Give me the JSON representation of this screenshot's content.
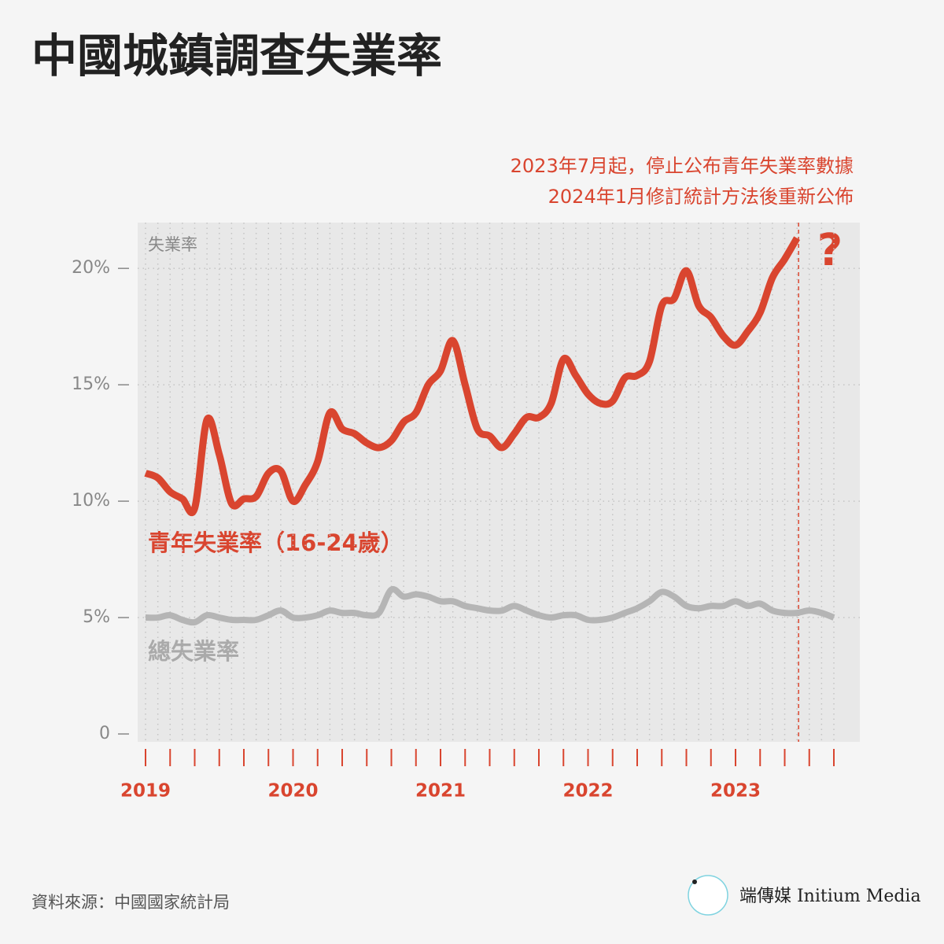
{
  "chart_data": {
    "type": "line",
    "title": "中國城鎮調查失業率",
    "annotations": [
      "2023年7月起，停止公布青年失業率數據",
      "2024年1月修訂統計方法後重新公佈",
      "?"
    ],
    "ylabel": "失業率",
    "source": "資料來源：中國國家統計局",
    "brand": "端傳媒 Initium Media",
    "categories": [
      "2019",
      null,
      null,
      null,
      null,
      null,
      null,
      null,
      null,
      null,
      null,
      null,
      "2020",
      null,
      null,
      null,
      null,
      null,
      null,
      null,
      null,
      null,
      null,
      null,
      "2021",
      null,
      null,
      null,
      null,
      null,
      null,
      null,
      null,
      null,
      null,
      null,
      "2022",
      null,
      null,
      null,
      null,
      null,
      null,
      null,
      null,
      null,
      null,
      null,
      "2023",
      null,
      null,
      null,
      null,
      null,
      null,
      null,
      null
    ],
    "series": [
      {
        "name": "青年失業率（16-24歲）",
        "color": "#d9452f",
        "values": [
          11.2,
          11.0,
          10.4,
          10.1,
          9.7,
          13.5,
          12.0,
          9.9,
          10.1,
          10.2,
          11.2,
          11.3,
          10.0,
          10.7,
          11.7,
          13.8,
          13.1,
          12.9,
          12.5,
          12.3,
          12.6,
          13.4,
          13.8,
          15.0,
          15.6,
          16.9,
          15.0,
          13.1,
          12.8,
          12.3,
          12.9,
          13.6,
          13.6,
          14.2,
          16.1,
          15.4,
          14.6,
          14.2,
          14.3,
          15.3,
          15.4,
          16.0,
          18.4,
          18.7,
          19.9,
          18.4,
          17.9,
          17.1,
          16.7,
          17.3,
          18.1,
          19.6,
          20.4,
          21.3,
          null,
          null,
          null
        ]
      },
      {
        "name": "總失業率",
        "color": "#b5b5b5",
        "values": [
          5.0,
          5.0,
          5.1,
          4.9,
          4.8,
          5.1,
          5.0,
          4.9,
          4.9,
          4.9,
          5.1,
          5.3,
          5.0,
          5.0,
          5.1,
          5.3,
          5.2,
          5.2,
          5.1,
          5.2,
          6.2,
          5.9,
          6.0,
          5.9,
          5.7,
          5.7,
          5.5,
          5.4,
          5.3,
          5.3,
          5.5,
          5.3,
          5.1,
          5.0,
          5.1,
          5.1,
          4.9,
          4.9,
          5.0,
          5.2,
          5.4,
          5.7,
          6.1,
          5.9,
          5.5,
          5.4,
          5.5,
          5.5,
          5.7,
          5.5,
          5.6,
          5.3,
          5.2,
          5.2,
          5.3,
          5.2,
          5.0
        ]
      }
    ],
    "ylim": [
      0,
      22
    ],
    "yticks": [
      0,
      {
        "value": 5,
        "label": "5%"
      },
      {
        "value": 10,
        "label": "10%"
      },
      {
        "value": 15,
        "label": "15%"
      },
      {
        "value": 20,
        "label": "20%"
      }
    ],
    "grid": true
  }
}
